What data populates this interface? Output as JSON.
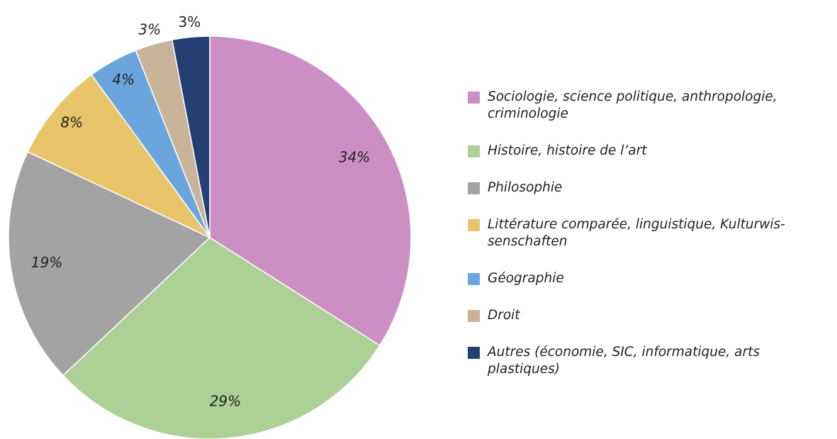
{
  "chart_data": {
    "type": "pie",
    "categories": [
      "Sociologie, science politique, anthropologie, criminologie",
      "Histoire, histoire de l’art",
      "Philosophie",
      "Littérature comparée, linguistique, Kulturwis­senschaften",
      "Géographie",
      "Droit",
      "Autres (économie, SIC, informatique, arts plastiques)"
    ],
    "values": [
      34,
      29,
      19,
      8,
      4,
      3,
      3
    ],
    "value_labels": [
      "34%",
      "29%",
      "19%",
      "8%",
      "4%",
      "3%",
      "3%"
    ],
    "colors": [
      "#cc8fc4",
      "#acd095",
      "#a3a3a3",
      "#e8c46a",
      "#6aa6dd",
      "#c9b49a",
      "#233f73"
    ],
    "legend": "right"
  }
}
